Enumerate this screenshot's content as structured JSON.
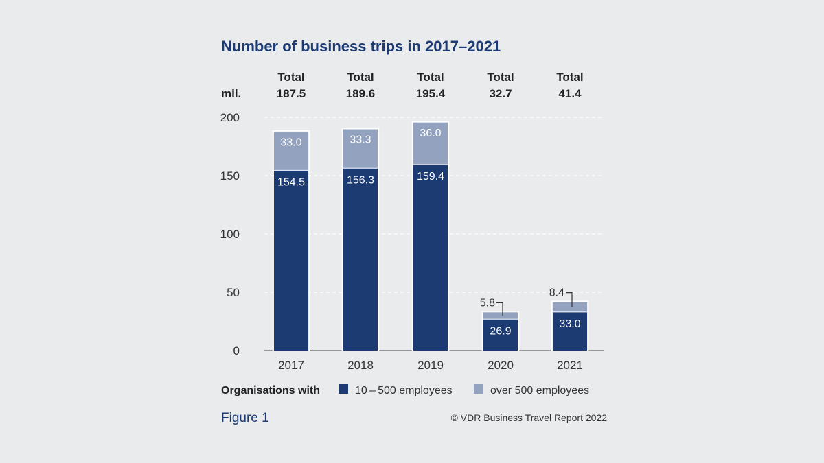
{
  "chart_data": {
    "type": "bar",
    "stacked": true,
    "title": "Number of business trips in 2017–2021",
    "unit_label": "mil.",
    "total_prefix": "Total",
    "categories": [
      "2017",
      "2018",
      "2019",
      "2020",
      "2021"
    ],
    "totals": [
      "187.5",
      "189.6",
      "195.4",
      "32.7",
      "41.4"
    ],
    "series": [
      {
        "name": "10 – 500 employees",
        "color": "#1d3b73",
        "values": [
          154.5,
          156.3,
          159.4,
          26.9,
          33.0
        ],
        "labels": [
          "154.5",
          "156.3",
          "159.4",
          "26.9",
          "33.0"
        ]
      },
      {
        "name": "over 500 employees",
        "color": "#93a3bf",
        "values": [
          33.0,
          33.3,
          36.0,
          5.8,
          8.4
        ],
        "labels": [
          "33.0",
          "33.3",
          "36.0",
          "5.8",
          "8.4"
        ]
      }
    ],
    "ylim": [
      0,
      200
    ],
    "yticks": [
      "0",
      "50",
      "100",
      "150",
      "200"
    ],
    "grid": true,
    "legend_lead": "Organisations with",
    "legend_position": "bottom"
  },
  "footer": {
    "figure": "Figure 1",
    "credit": "© VDR Business Travel Report 2022"
  }
}
